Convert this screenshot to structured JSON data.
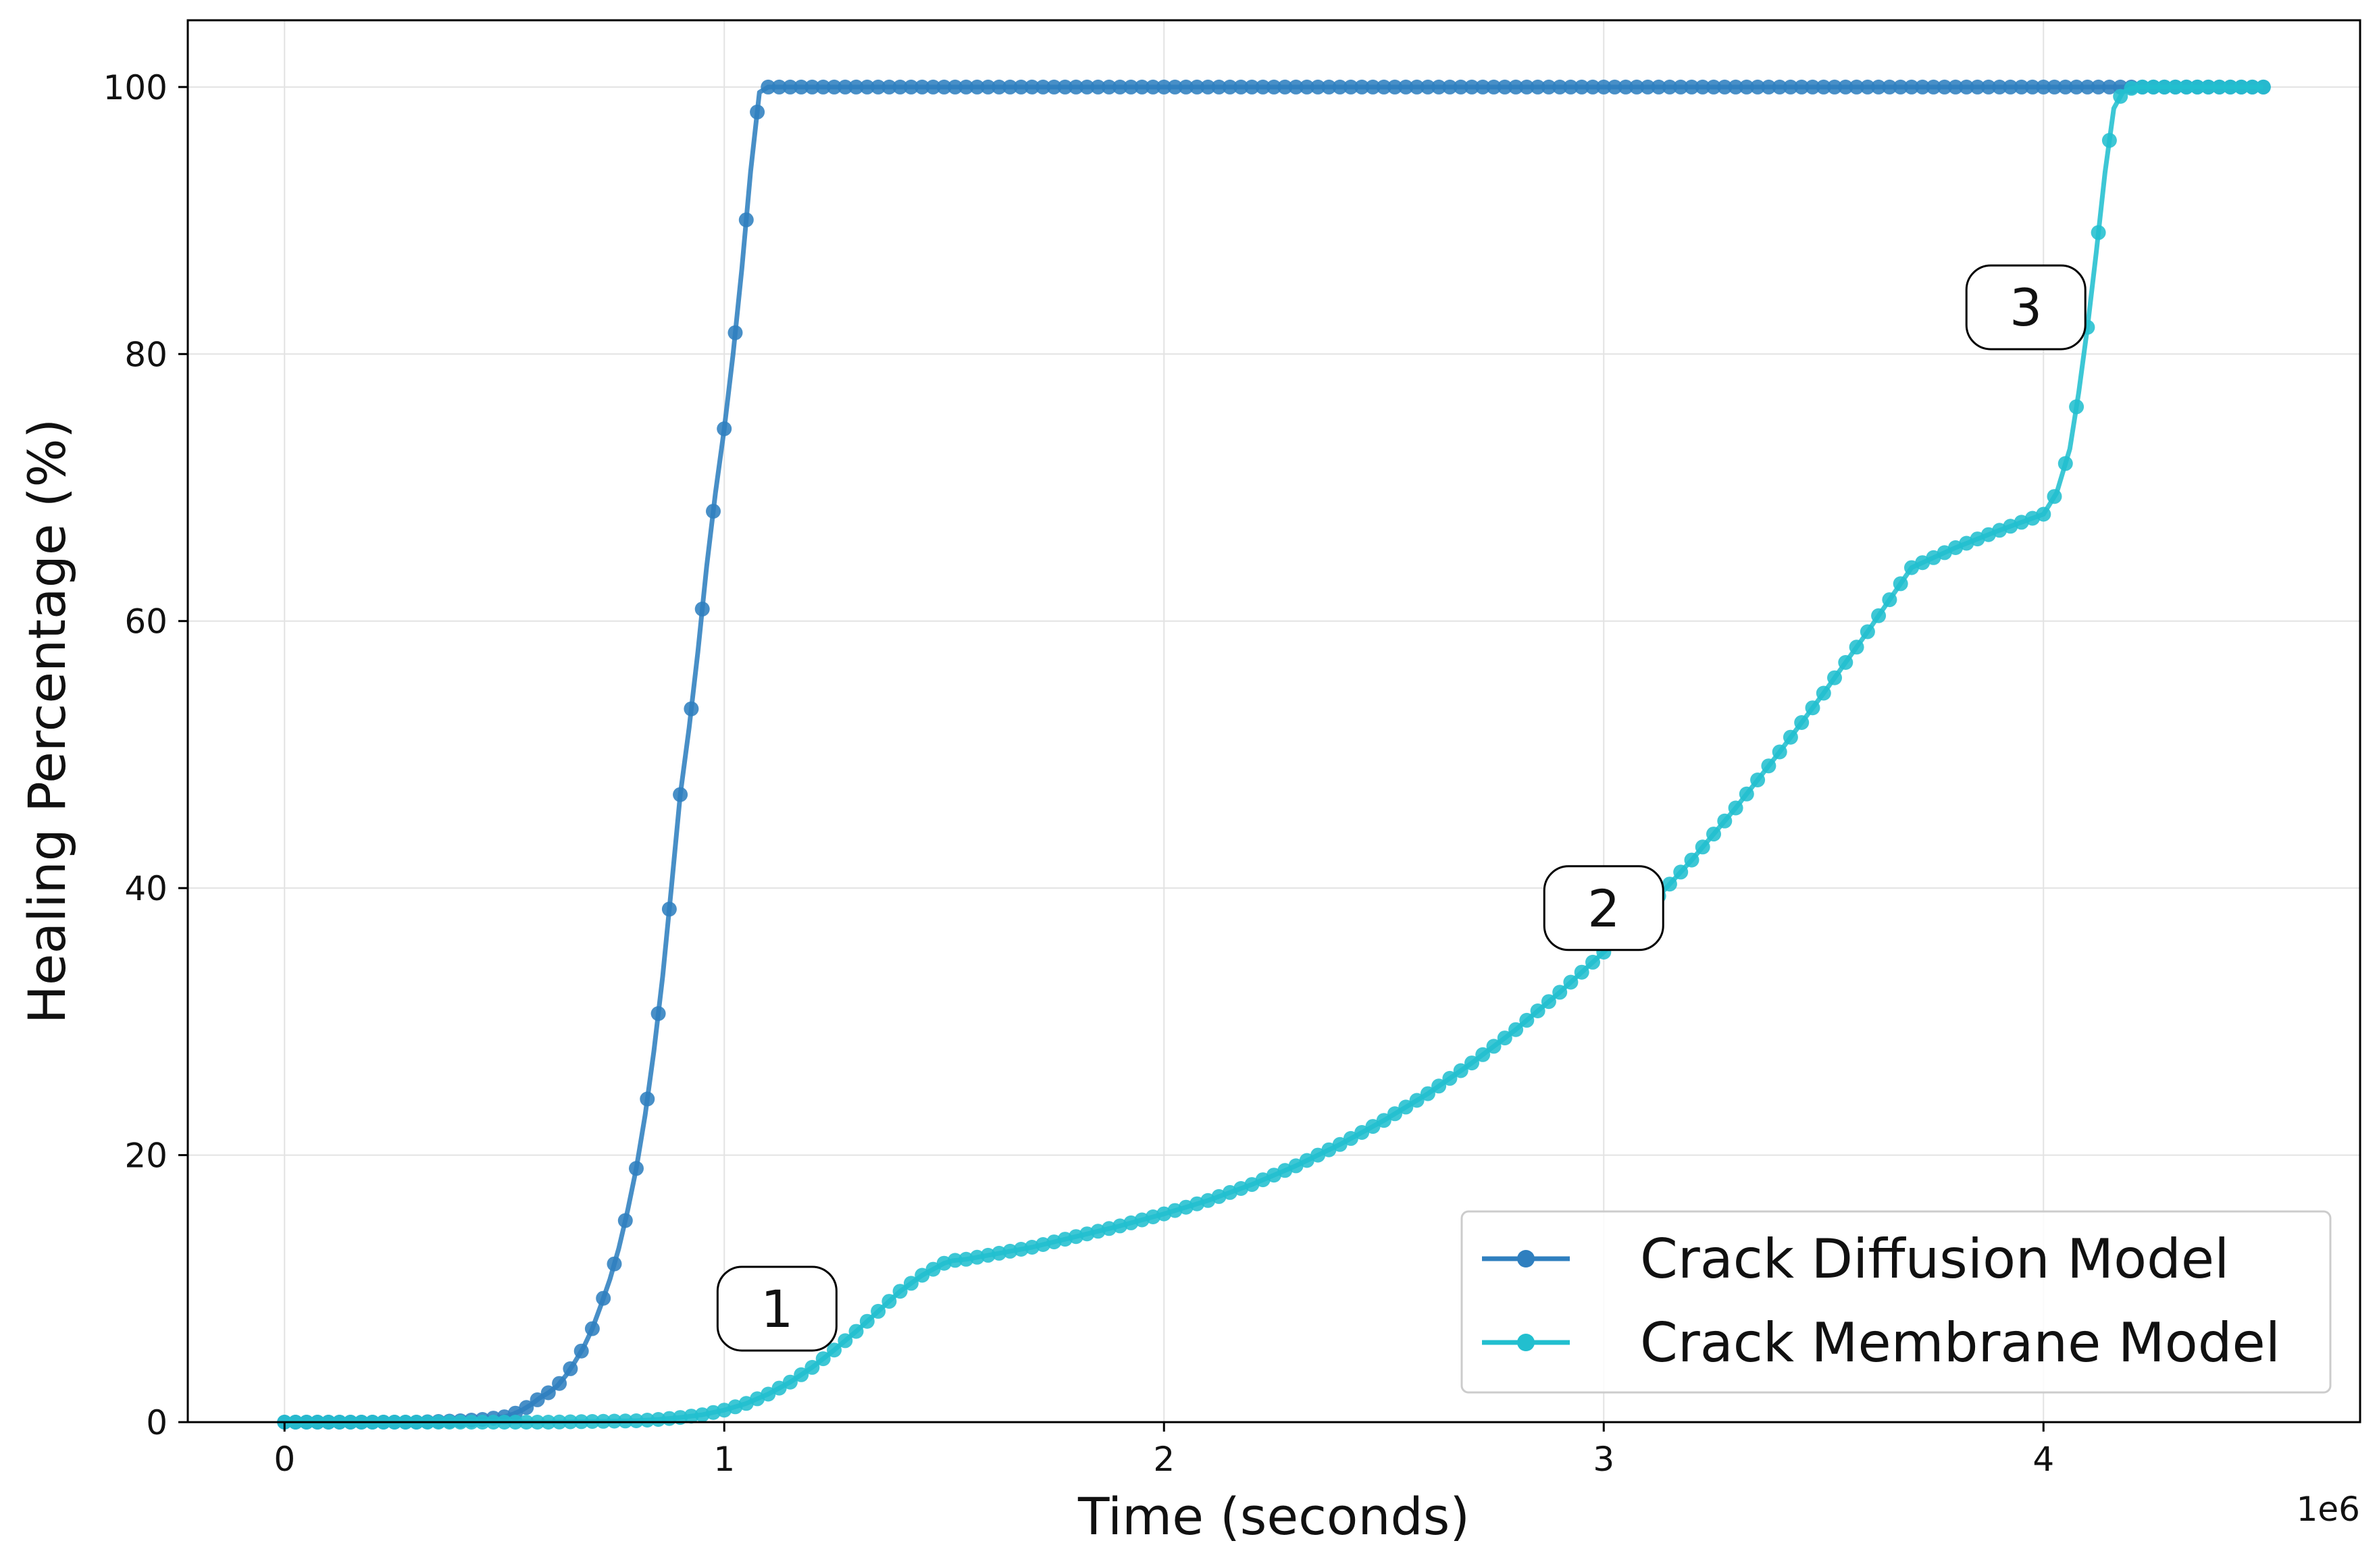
{
  "chart_data": {
    "type": "line",
    "title": "",
    "xlabel": "Time (seconds)",
    "ylabel": "Healing Percentage (%)",
    "x_offset_label": "1e6",
    "xlim": [
      -220000,
      4720000
    ],
    "ylim": [
      0,
      105
    ],
    "xticks": [
      0,
      1000000,
      2000000,
      3000000,
      4000000
    ],
    "xtick_labels": [
      "0",
      "1",
      "2",
      "3",
      "4"
    ],
    "yticks": [
      0,
      20,
      40,
      60,
      80,
      100
    ],
    "ytick_labels": [
      "0",
      "20",
      "40",
      "60",
      "80",
      "100"
    ],
    "grid": true,
    "legend_position": "lower-right",
    "series": [
      {
        "name": "Crack Diffusion Model",
        "color": "#2f7fbf",
        "marker": "circle",
        "x": [
          0,
          50000,
          100000,
          150000,
          200000,
          250000,
          300000,
          350000,
          400000,
          450000,
          500000,
          520000,
          540000,
          560000,
          580000,
          600000,
          620000,
          640000,
          660000,
          680000,
          700000,
          720000,
          740000,
          760000,
          780000,
          800000,
          820000,
          840000,
          860000,
          880000,
          900000,
          920000,
          940000,
          960000,
          980000,
          1000000,
          1020000,
          1040000,
          1060000,
          1080000,
          1100000,
          1150000,
          1200000,
          1300000,
          1400000,
          1500000,
          1600000,
          1700000,
          1800000,
          1900000,
          2000000,
          2100000,
          2200000,
          2300000,
          2400000,
          2500000,
          2600000,
          2700000,
          2800000,
          2900000,
          3000000,
          3100000,
          3200000,
          3300000,
          3400000,
          3500000,
          3600000,
          3700000,
          3800000,
          3900000,
          4000000,
          4100000,
          4200000,
          4300000,
          4400000,
          4500000
        ],
        "y": [
          0,
          0,
          0,
          0,
          0,
          0,
          0,
          0.05,
          0.1,
          0.2,
          0.4,
          0.6,
          0.9,
          1.3,
          1.8,
          2.2,
          2.7,
          3.5,
          4.5,
          5.6,
          7.0,
          8.8,
          10.7,
          13.0,
          15.8,
          19.0,
          23.0,
          27.8,
          33.4,
          40.1,
          47.0,
          52.0,
          57.7,
          64.1,
          69.6,
          74.4,
          80.0,
          86.4,
          93.7,
          99.6,
          100,
          100,
          100,
          100,
          100,
          100,
          100,
          100,
          100,
          100,
          100,
          100,
          100,
          100,
          100,
          100,
          100,
          100,
          100,
          100,
          100,
          100,
          100,
          100,
          100,
          100,
          100,
          100,
          100,
          100,
          100,
          100,
          100,
          100,
          100,
          100
        ]
      },
      {
        "name": "Crack Membrane Model",
        "color": "#22bfcf",
        "marker": "circle",
        "x": [
          0,
          100000,
          200000,
          300000,
          400000,
          500000,
          600000,
          700000,
          800000,
          850000,
          900000,
          950000,
          1000000,
          1050000,
          1100000,
          1150000,
          1200000,
          1250000,
          1300000,
          1350000,
          1400000,
          1450000,
          1500000,
          1520000,
          1550000,
          1600000,
          1700000,
          1800000,
          1900000,
          2000000,
          2100000,
          2200000,
          2300000,
          2400000,
          2500000,
          2600000,
          2700000,
          2800000,
          2900000,
          3000000,
          3100000,
          3200000,
          3300000,
          3400000,
          3500000,
          3600000,
          3700000,
          3800000,
          3900000,
          4000000,
          4030000,
          4060000,
          4080000,
          4100000,
          4120000,
          4140000,
          4160000,
          4180000,
          4200000,
          4220000,
          4250000,
          4300000,
          4350000,
          4400000,
          4450000,
          4500000
        ],
        "y": [
          0,
          0,
          0,
          0,
          0,
          0,
          0,
          0.05,
          0.1,
          0.2,
          0.35,
          0.55,
          0.9,
          1.4,
          2.1,
          3.0,
          4.1,
          5.4,
          6.8,
          8.3,
          9.8,
          11.0,
          11.9,
          12.1,
          12.2,
          12.5,
          13.1,
          13.9,
          14.7,
          15.6,
          16.6,
          17.8,
          19.2,
          20.8,
          22.6,
          24.6,
          26.9,
          29.4,
          32.2,
          35.2,
          38.5,
          42.1,
          46.0,
          50.2,
          54.6,
          59.2,
          64.0,
          65.5,
          66.8,
          68.0,
          69.6,
          72.9,
          77.1,
          82.0,
          87.6,
          93.6,
          98.4,
          99.6,
          99.9,
          100,
          100,
          100,
          100,
          100,
          100,
          100
        ]
      }
    ],
    "annotations": [
      {
        "text": "1",
        "x": 1120000,
        "y": 8.5
      },
      {
        "text": "2",
        "x": 3000000,
        "y": 38.5
      },
      {
        "text": "3",
        "x": 3960000,
        "y": 83.5
      }
    ]
  }
}
